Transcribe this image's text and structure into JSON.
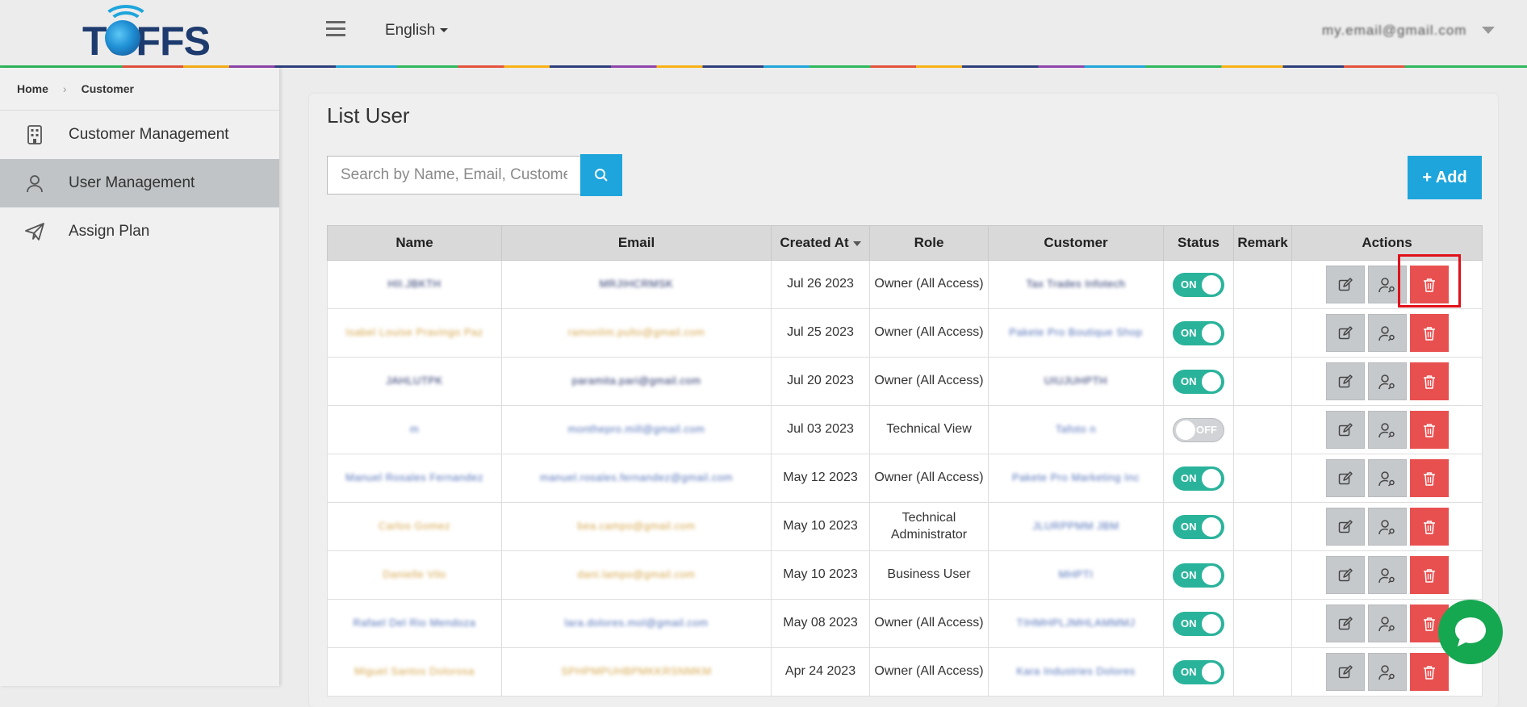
{
  "header": {
    "logo_text": "TOFFS",
    "language": "English",
    "user_email": "my.email@gmail.com"
  },
  "sidebar": {
    "breadcrumb": [
      "Home",
      "Customer"
    ],
    "items": [
      {
        "label": "Customer Management",
        "icon": "building-icon"
      },
      {
        "label": "User Management",
        "icon": "user-icon",
        "active": true
      },
      {
        "label": "Assign Plan",
        "icon": "paper-plane-icon"
      }
    ]
  },
  "main": {
    "title": "List User",
    "search_placeholder": "Search by Name, Email, Customer",
    "add_label": "+ Add"
  },
  "table": {
    "columns": [
      "Name",
      "Email",
      "Created At",
      "Role",
      "Customer",
      "Status",
      "Remark",
      "Actions"
    ],
    "rows": [
      {
        "name": "HII.JBKTH",
        "email": "MRJIHCRMSK",
        "created": "Jul 26 2023",
        "role": "Owner (All Access)",
        "customer": "Tax Trades Infotech",
        "status": "ON",
        "remark": ""
      },
      {
        "name": "Isabel Louise Pravingo Paz",
        "email": "ramonlim.pulto@gmail.com",
        "created": "Jul 25 2023",
        "role": "Owner (All Access)",
        "customer": "Pakete Pro Boutique Shop",
        "status": "ON",
        "remark": ""
      },
      {
        "name": "JAHLUTPK",
        "email": "paramita.pari@gmail.com",
        "created": "Jul 20 2023",
        "role": "Owner (All Access)",
        "customer": "UIUJUHPTH",
        "status": "ON",
        "remark": ""
      },
      {
        "name": "m",
        "email": "monthepro.mill@gmail.com",
        "created": "Jul 03 2023",
        "role": "Technical View",
        "customer": "Tafoto n",
        "status": "OFF",
        "remark": ""
      },
      {
        "name": "Manuel Rosales Fernandez",
        "email": "manuel.rosales.fernandez@gmail.com",
        "created": "May 12 2023",
        "role": "Owner (All Access)",
        "customer": "Pakete Pro Marketing Inc",
        "status": "ON",
        "remark": ""
      },
      {
        "name": "Carlos Gomez",
        "email": "bea.campo@gmail.com",
        "created": "May 10 2023",
        "role": "Technical Administrator",
        "customer": "JLURPPMM JBM",
        "status": "ON",
        "remark": ""
      },
      {
        "name": "Danielle Vilo",
        "email": "dani.lampo@gmail.com",
        "created": "May 10 2023",
        "role": "Business User",
        "customer": "MHPTI",
        "status": "ON",
        "remark": ""
      },
      {
        "name": "Rafael Del Rio Mendoza",
        "email": "lara.dolores.mol@gmail.com",
        "created": "May 08 2023",
        "role": "Owner (All Access)",
        "customer": "TIHMHPLJMHLAMMMJ",
        "status": "ON",
        "remark": ""
      },
      {
        "name": "Miguel Santos Dolorosa",
        "email": "SPHPMPUHBPMKKRSNMKM",
        "created": "Apr 24 2023",
        "role": "Owner (All Access)",
        "customer": "Kara Industries Dolores",
        "status": "ON",
        "remark": ""
      }
    ]
  },
  "colors": {
    "accent": "#1ea5dc",
    "toggle_on": "#2ab39b",
    "delete": "#e85050",
    "chat": "#16a751",
    "highlight": "#e0101a"
  }
}
